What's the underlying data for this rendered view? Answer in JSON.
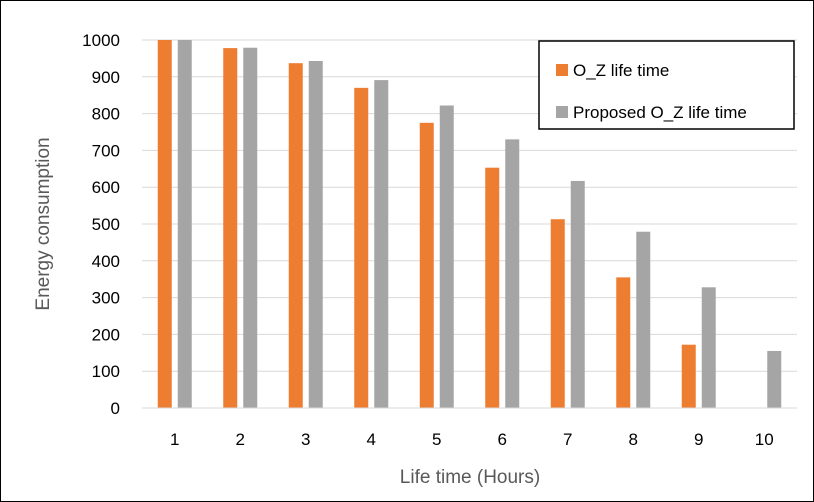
{
  "chart_data": {
    "type": "bar",
    "title": "",
    "xlabel": "Life time (Hours)",
    "ylabel": "Energy consumption",
    "categories": [
      "1",
      "2",
      "3",
      "4",
      "5",
      "6",
      "7",
      "8",
      "9",
      "10"
    ],
    "ylim": [
      0,
      1000
    ],
    "yticks": [
      0,
      100,
      200,
      300,
      400,
      500,
      600,
      700,
      800,
      900,
      1000
    ],
    "grid": true,
    "legend_position": "top-right",
    "series": [
      {
        "name": "O_Z life time",
        "color": "#ED7D31",
        "values": [
          1000,
          978,
          937,
          870,
          775,
          653,
          513,
          355,
          172,
          0
        ]
      },
      {
        "name": "Proposed O_Z life time",
        "color": "#A5A5A5",
        "values": [
          1000,
          979,
          943,
          891,
          822,
          730,
          617,
          479,
          328,
          155
        ]
      }
    ]
  }
}
